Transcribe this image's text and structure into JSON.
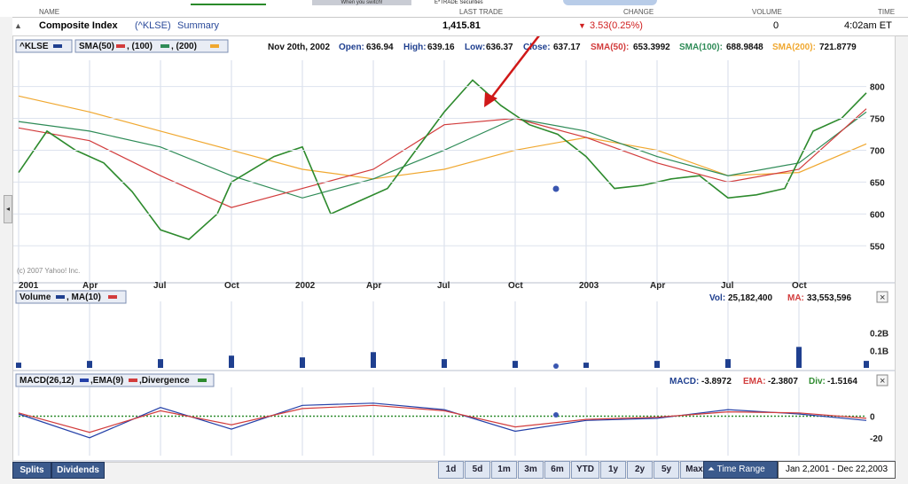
{
  "header": {
    "col_name": "NAME",
    "col_last": "LAST TRADE",
    "col_change": "CHANGE",
    "col_volume": "VOLUME",
    "col_time": "TIME",
    "title": "Composite Index",
    "symbol": "(^KLSE)",
    "summary": "Summary",
    "last_trade": "1,415.81",
    "change": "3.53(0.25%)",
    "volume": "0",
    "time": "4:02am ET",
    "top_partial_1": "When you switch!",
    "top_partial_2": "E*TRADE Securities"
  },
  "legend": {
    "klse": "^KLSE",
    "sma": "SMA(50)",
    "sma100": ", (100)",
    "sma200": ", (200)",
    "date": "Nov 20th, 2002",
    "open_l": "Open:",
    "open_v": "636.94",
    "high_l": "High:",
    "high_v": "639.16",
    "low_l": "Low:",
    "low_v": "636.37",
    "close_l": "Close:",
    "close_v": "637.17",
    "sma50_l": "SMA(50):",
    "sma50_v": "653.3992",
    "sma100_l": "SMA(100):",
    "sma100_v": "688.9848",
    "sma200_l": "SMA(200):",
    "sma200_v": "721.8779",
    "copyright": "(c) 2007 Yahoo! Inc.",
    "volume_lbl": "Volume",
    "ma_lbl": ", MA(10)",
    "vol_l": "Vol:",
    "vol_v": "25,182,400",
    "ma_l": "MA:",
    "ma_v": "33,553,596",
    "macd_lbl": "MACD(26,12)",
    "ema_lbl": ",EMA(9)",
    "div_lbl": ",Divergence",
    "macd_l": "MACD:",
    "macd_v": "-3.8972",
    "ema_l": "EMA:",
    "ema_v": "-2.3807",
    "divv_l": "Div:",
    "divv_v": "-1.5164"
  },
  "buttons": {
    "splits": "Splits",
    "dividends": "Dividends",
    "ranges": [
      "1d",
      "5d",
      "1m",
      "3m",
      "6m",
      "YTD",
      "1y",
      "2y",
      "5y",
      "Max"
    ],
    "time_range": "Time Range",
    "date_range": "Jan 2,2001 - Dec 22,2003",
    "close": "×"
  },
  "colors": {
    "price": "#2d8a2d",
    "sma50": "#d23c3c",
    "sma100": "#2e8b57",
    "sma200": "#f0a830",
    "volume": "#1f3f8f",
    "macd": "#2440a8",
    "ema": "#d23c3c",
    "div": "#2e8b2e",
    "arrow": "#d01818"
  },
  "chart_data": [
    {
      "type": "line",
      "title": "Composite Index (^KLSE)",
      "ylim": [
        510,
        830
      ],
      "y_ticks": [
        "800",
        "750",
        "700",
        "650",
        "600",
        "550"
      ],
      "x_ticks": [
        "2001",
        "Apr",
        "Jul",
        "Oct",
        "2002",
        "Apr",
        "Jul",
        "Oct",
        "2003",
        "Apr",
        "Jul",
        "Oct"
      ],
      "series": [
        {
          "name": "^KLSE",
          "x": [
            0,
            0.4,
            0.8,
            1.2,
            1.6,
            2.0,
            2.4,
            2.8,
            3.0,
            3.6,
            4.0,
            4.4,
            4.8,
            5.2,
            5.6,
            6.0,
            6.4,
            6.8,
            7.2,
            7.6,
            8.0,
            8.4,
            8.8,
            9.2,
            9.6,
            10.0,
            10.4,
            10.8,
            11.2,
            11.6,
            11.95
          ],
          "values": [
            665,
            730,
            700,
            680,
            635,
            575,
            560,
            600,
            650,
            690,
            705,
            600,
            620,
            640,
            700,
            760,
            810,
            770,
            740,
            725,
            690,
            640,
            645,
            655,
            660,
            625,
            630,
            640,
            730,
            750,
            790
          ]
        },
        {
          "name": "SMA(50)",
          "x": [
            0,
            1,
            2,
            3,
            4,
            5,
            6,
            7,
            8,
            9,
            10,
            11,
            11.95
          ],
          "values": [
            735,
            715,
            660,
            610,
            640,
            670,
            740,
            750,
            720,
            680,
            650,
            670,
            765
          ]
        },
        {
          "name": "SMA(100)",
          "x": [
            0,
            1,
            2,
            3,
            4,
            5,
            6,
            7,
            8,
            9,
            10,
            11,
            11.95
          ],
          "values": [
            745,
            730,
            705,
            660,
            625,
            655,
            700,
            750,
            730,
            690,
            660,
            680,
            760
          ]
        },
        {
          "name": "SMA(200)",
          "x": [
            0,
            1,
            2,
            3,
            4,
            5,
            6,
            7,
            8,
            9,
            10,
            11,
            11.95
          ],
          "values": [
            785,
            760,
            730,
            700,
            670,
            655,
            670,
            700,
            720,
            700,
            660,
            665,
            710
          ]
        }
      ]
    },
    {
      "type": "bar",
      "title": "Volume, MA(10)",
      "ylim": [
        0,
        0.35
      ],
      "y_ticks": [
        "0.2B",
        "0.1B"
      ],
      "series": [
        {
          "name": "Volume",
          "x": [
            0,
            1,
            2,
            3,
            4,
            5,
            6,
            7,
            8,
            9,
            10,
            11,
            11.95
          ],
          "values": [
            0.03,
            0.04,
            0.05,
            0.07,
            0.06,
            0.09,
            0.05,
            0.04,
            0.03,
            0.04,
            0.05,
            0.12,
            0.04
          ]
        }
      ]
    },
    {
      "type": "line",
      "title": "MACD(26,12), EMA(9), Divergence",
      "ylim": [
        -30,
        25
      ],
      "y_ticks": [
        "0",
        "-20"
      ],
      "series": [
        {
          "name": "MACD",
          "x": [
            0,
            1,
            2,
            3,
            4,
            5,
            6,
            7,
            8,
            9,
            10,
            11,
            11.95
          ],
          "values": [
            2,
            -20,
            8,
            -12,
            10,
            12,
            6,
            -14,
            -4,
            -2,
            6,
            2,
            -4
          ]
        },
        {
          "name": "EMA",
          "x": [
            0,
            1,
            2,
            3,
            4,
            5,
            6,
            7,
            8,
            9,
            10,
            11,
            11.95
          ],
          "values": [
            3,
            -15,
            5,
            -8,
            7,
            10,
            5,
            -10,
            -3,
            -1,
            4,
            3,
            -2
          ]
        }
      ]
    }
  ]
}
